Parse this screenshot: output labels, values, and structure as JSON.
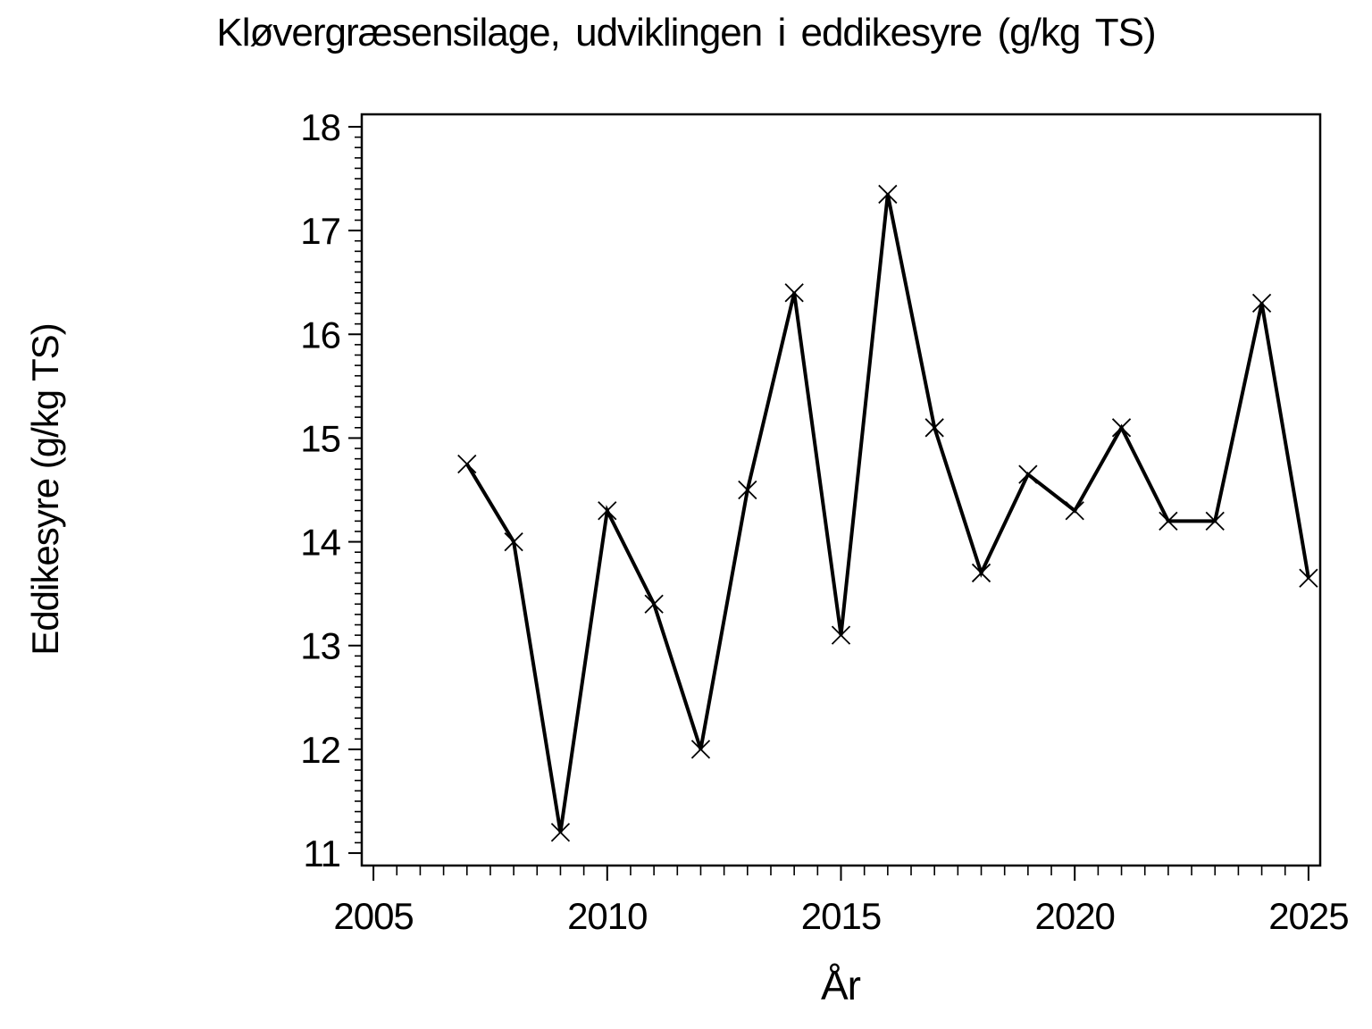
{
  "chart_data": {
    "type": "line",
    "title": "Kløvergræsensilage,  udviklingen  i  eddikesyre  (g/kg TS)",
    "xlabel": "År",
    "ylabel": "Eddikesyre  (g/kg TS)",
    "series_name": "Eddikesyre g/kg TS",
    "x": [
      2007,
      2008,
      2009,
      2010,
      2011,
      2012,
      2013,
      2014,
      2015,
      2016,
      2017,
      2018,
      2019,
      2020,
      2021,
      2022,
      2023,
      2024,
      2025
    ],
    "values": [
      14.75,
      14.0,
      11.2,
      14.3,
      13.4,
      12.0,
      14.5,
      16.4,
      13.1,
      17.35,
      15.1,
      13.7,
      14.65,
      14.3,
      15.1,
      14.2,
      14.2,
      16.3,
      13.65
    ],
    "xlim": [
      2004.75,
      2025.25
    ],
    "ylim": [
      10.88,
      18.12
    ],
    "x_major_ticks": [
      2005,
      2010,
      2015,
      2020,
      2025
    ],
    "x_minor_step": 0.5,
    "y_major_ticks": [
      11,
      12,
      13,
      14,
      15,
      16,
      17,
      18
    ],
    "y_minor_step": 0.1,
    "marker": "x",
    "line_color": "#000000",
    "background_color": "#ffffff",
    "grid": false,
    "legend_position": "none"
  }
}
